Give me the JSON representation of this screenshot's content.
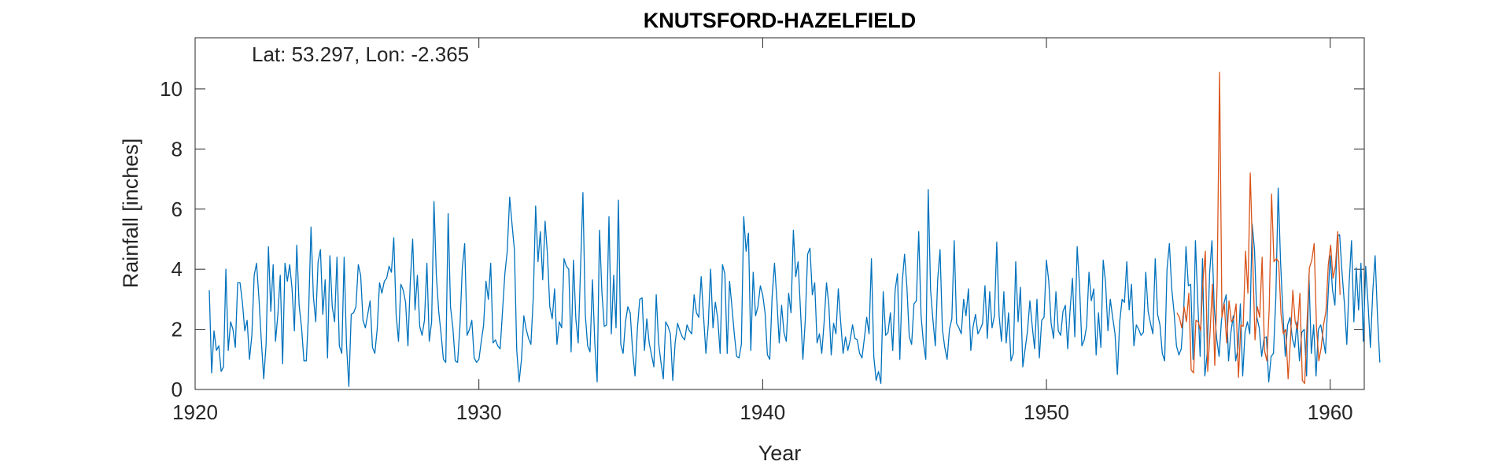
{
  "chart_data": {
    "type": "line",
    "title": "KNUTSFORD-HAZELFIELD",
    "annotation": "Lat: 53.297, Lon: -2.365",
    "xlabel": "Year",
    "ylabel": "Rainfall [inches]",
    "xlim": [
      1920,
      1961.2
    ],
    "ylim": [
      0,
      11.7
    ],
    "xticks": [
      1920,
      1930,
      1940,
      1950,
      1960
    ],
    "yticks": [
      0,
      2,
      4,
      6,
      8,
      10
    ],
    "grid": false,
    "legend": "none",
    "series": [
      {
        "color": "#0072BD",
        "x_start": 1920.5,
        "x_step": 0.0833333,
        "values": [
          3.3,
          0.55,
          1.95,
          1.3,
          1.45,
          0.6,
          0.75,
          4.0,
          1.3,
          2.25,
          2.0,
          1.4,
          3.55,
          3.55,
          2.9,
          1.95,
          2.3,
          1.0,
          1.8,
          3.8,
          4.2,
          3.0,
          1.6,
          0.35,
          1.5,
          4.75,
          2.6,
          4.15,
          1.6,
          2.5,
          3.8,
          0.85,
          4.2,
          3.6,
          4.15,
          3.35,
          1.95,
          4.8,
          2.8,
          2.05,
          0.95,
          0.95,
          2.6,
          5.4,
          3.1,
          2.25,
          4.25,
          4.65,
          2.5,
          3.65,
          1.05,
          4.45,
          2.75,
          2.25,
          4.4,
          1.45,
          1.2,
          4.4,
          1.5,
          0.1,
          2.5,
          2.55,
          2.75,
          4.15,
          3.8,
          2.3,
          2.05,
          2.5,
          2.95,
          1.4,
          1.2,
          2.0,
          3.55,
          3.2,
          3.6,
          3.7,
          4.1,
          3.9,
          5.05,
          2.5,
          1.6,
          3.5,
          3.3,
          2.9,
          1.45,
          3.6,
          5.0,
          2.65,
          3.8,
          2.1,
          1.8,
          2.3,
          4.2,
          1.6,
          2.25,
          6.25,
          3.8,
          2.6,
          1.85,
          1.0,
          0.9,
          5.85,
          2.75,
          2.05,
          0.95,
          0.9,
          2.1,
          4.05,
          4.85,
          1.8,
          2.0,
          2.3,
          1.05,
          0.9,
          1.0,
          1.6,
          2.15,
          3.6,
          3.0,
          4.2,
          1.55,
          1.65,
          1.45,
          1.35,
          2.6,
          3.85,
          4.6,
          6.4,
          5.5,
          4.65,
          1.3,
          0.25,
          1.0,
          2.45,
          2.0,
          1.7,
          1.5,
          3.05,
          6.1,
          4.25,
          5.25,
          3.65,
          5.6,
          4.5,
          2.75,
          2.35,
          3.35,
          1.5,
          2.25,
          2.05,
          4.35,
          4.1,
          4.0,
          1.25,
          4.3,
          2.35,
          1.55,
          4.05,
          6.55,
          2.5,
          1.45,
          1.25,
          3.65,
          1.55,
          0.25,
          5.3,
          3.25,
          2.1,
          2.15,
          5.75,
          1.85,
          3.8,
          2.05,
          6.3,
          1.5,
          1.2,
          2.25,
          2.75,
          2.55,
          1.3,
          0.45,
          2.0,
          3.0,
          3.05,
          1.3,
          2.35,
          1.55,
          1.15,
          0.75,
          3.15,
          1.55,
          0.9,
          0.35,
          2.25,
          2.1,
          1.85,
          0.3,
          1.55,
          2.2,
          1.95,
          1.75,
          1.65,
          2.15,
          1.95,
          1.85,
          3.15,
          2.55,
          2.4,
          3.75,
          2.45,
          1.2,
          2.15,
          4.0,
          2.05,
          2.9,
          2.35,
          1.2,
          4.15,
          3.85,
          1.2,
          3.6,
          2.75,
          1.85,
          1.1,
          1.05,
          1.5,
          5.75,
          4.6,
          5.2,
          1.3,
          3.9,
          2.45,
          2.75,
          3.45,
          3.15,
          2.55,
          1.15,
          1.0,
          3.1,
          4.2,
          3.0,
          1.55,
          2.8,
          1.9,
          1.6,
          3.2,
          2.55,
          5.3,
          3.75,
          4.25,
          2.65,
          1.0,
          2.3,
          4.5,
          4.7,
          3.15,
          3.55,
          1.55,
          1.85,
          1.2,
          2.25,
          3.55,
          2.8,
          1.15,
          2.2,
          1.85,
          3.35,
          2.25,
          1.2,
          1.75,
          1.3,
          1.65,
          2.15,
          1.7,
          1.65,
          1.2,
          1.05,
          1.7,
          2.4,
          1.85,
          4.35,
          1.1,
          0.3,
          0.6,
          0.2,
          3.25,
          1.8,
          1.9,
          2.55,
          1.3,
          3.3,
          3.85,
          1.0,
          3.55,
          4.5,
          3.4,
          1.75,
          1.5,
          2.85,
          2.95,
          5.25,
          2.45,
          1.55,
          1.0,
          6.65,
          3.3,
          2.3,
          1.45,
          3.65,
          4.65,
          2.0,
          1.4,
          1.0,
          2.0,
          2.35,
          4.95,
          2.2,
          2.05,
          1.85,
          3.0,
          2.45,
          3.35,
          1.3,
          2.1,
          2.5,
          1.85,
          2.0,
          2.2,
          3.45,
          1.7,
          3.25,
          2.05,
          2.45,
          4.9,
          2.45,
          1.6,
          3.25,
          1.55,
          2.55,
          0.95,
          1.2,
          4.25,
          2.25,
          3.4,
          0.75,
          1.35,
          1.95,
          2.95,
          2.1,
          1.35,
          3.0,
          1.05,
          2.3,
          2.4,
          4.3,
          3.6,
          2.2,
          1.7,
          3.25,
          1.95,
          1.8,
          2.6,
          2.8,
          1.35,
          2.65,
          3.7,
          1.75,
          4.75,
          3.45,
          1.45,
          1.65,
          2.1,
          3.9,
          2.95,
          3.35,
          1.15,
          2.55,
          1.4,
          4.3,
          3.55,
          1.95,
          3.0,
          2.4,
          1.85,
          0.5,
          2.25,
          3.0,
          2.9,
          4.25,
          2.65,
          3.5,
          1.45,
          2.15,
          2.0,
          1.8,
          1.9,
          3.9,
          2.6,
          2.2,
          1.85,
          4.35,
          2.5,
          2.15,
          1.2,
          0.95,
          4.0,
          4.85,
          3.35,
          2.55,
          1.45,
          1.15,
          1.35,
          2.55,
          4.75,
          3.45,
          3.5,
          1.0,
          4.95,
          2.9,
          1.1,
          4.35,
          0.45,
          1.2,
          3.85,
          4.95,
          2.7,
          1.7,
          1.1,
          2.3,
          2.85,
          3.15,
          0.95,
          1.9,
          2.45,
          0.95,
          1.35,
          2.85,
          0.45,
          1.9,
          2.25,
          1.85,
          5.5,
          4.65,
          2.4,
          2.05,
          1.1,
          1.7,
          1.75,
          0.25,
          1.1,
          1.2,
          3.05,
          6.7,
          4.25,
          2.55,
          1.1,
          2.15,
          2.4,
          1.7,
          1.4,
          2.25,
          0.95,
          1.9,
          2.0,
          0.45,
          3.8,
          1.2,
          2.15,
          0.45,
          2.0,
          2.15,
          1.7,
          1.2,
          2.95,
          4.45,
          3.3,
          2.8,
          5.1,
          5.15,
          3.9,
          2.85,
          1.5,
          3.55,
          4.95,
          2.25,
          4.05,
          2.65,
          4.2,
          1.6,
          4.1,
          2.85,
          1.4,
          3.25,
          4.45,
          2.45,
          0.9
        ]
      },
      {
        "color": "#D95319",
        "x_start": 1954.6,
        "x_step": 0.0833333,
        "values": [
          2.55,
          2.4,
          2.05,
          2.75,
          2.25,
          3.2,
          0.65,
          0.55,
          2.3,
          2.25,
          1.95,
          3.6,
          4.6,
          0.6,
          1.9,
          3.5,
          0.8,
          3.5,
          10.55,
          2.4,
          2.85,
          1.55,
          2.95,
          2.25,
          2.35,
          2.85,
          0.4,
          2.15,
          2.1,
          4.6,
          3.2,
          7.2,
          4.5,
          1.65,
          2.75,
          2.4,
          4.4,
          1.3,
          0.95,
          2.7,
          6.5,
          4.25,
          4.35,
          4.25,
          2.5,
          1.85,
          2.0,
          0.35,
          1.65,
          3.3,
          2.25,
          2.0,
          3.2,
          0.3,
          0.2,
          2.25,
          4.05,
          4.3,
          4.85,
          2.05,
          0.95,
          1.4,
          2.15,
          2.6,
          4.15,
          4.8,
          3.7,
          4.1,
          5.25,
          3.15
        ]
      }
    ]
  }
}
